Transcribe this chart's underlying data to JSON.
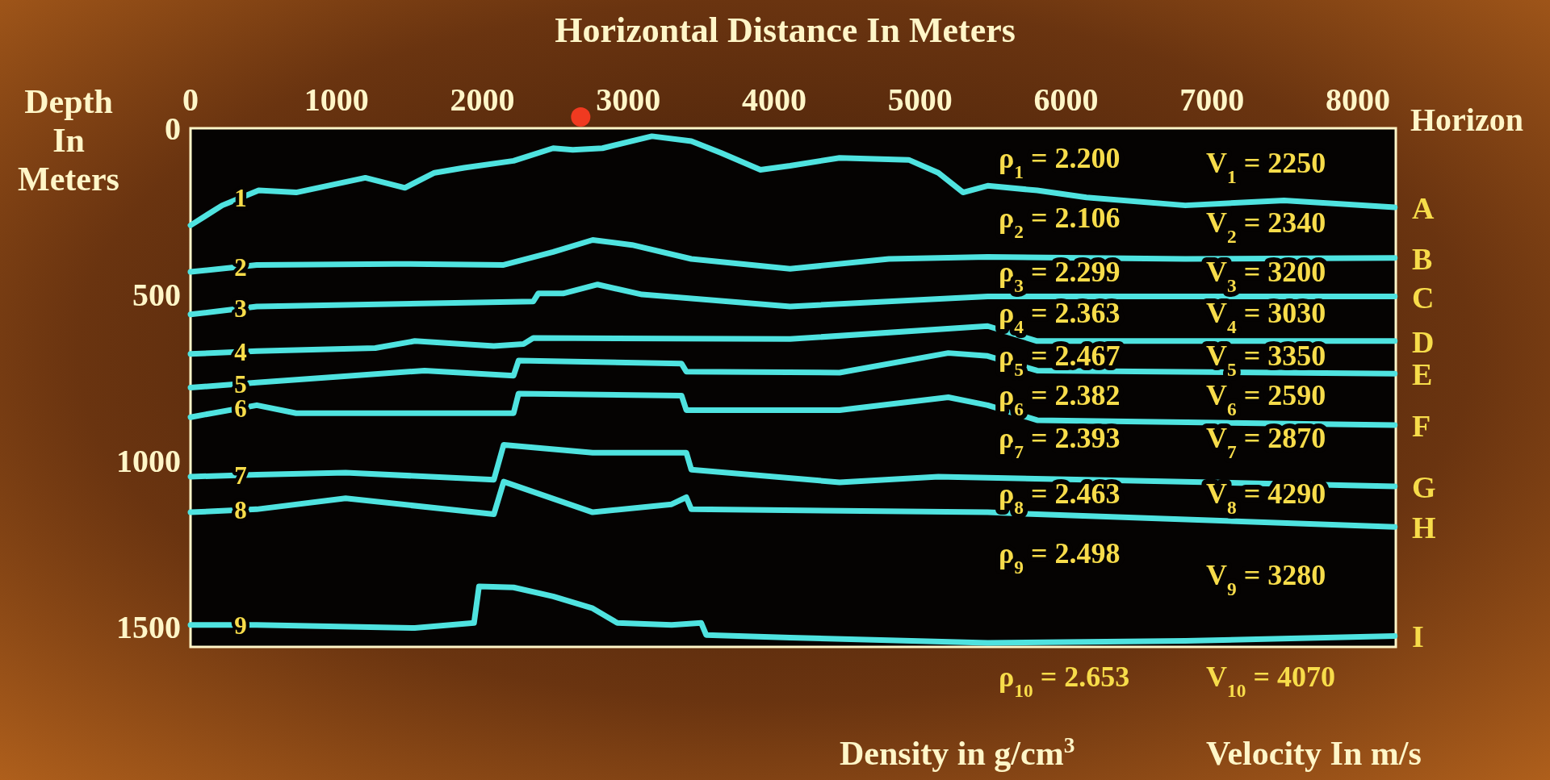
{
  "chart_data": {
    "type": "line",
    "xlabel": "Horizontal Distance In Meters",
    "ylabel": "Depth In Meters",
    "legend_title": "Horizon",
    "xlim": [
      0,
      8260
    ],
    "xticks": [
      0,
      1000,
      2000,
      3000,
      4000,
      5000,
      6000,
      7000,
      8000
    ],
    "ylim": [
      1560,
      0
    ],
    "yticks": [
      0,
      500,
      1000,
      1500
    ],
    "grid": false,
    "line_style": "solid",
    "series": [
      {
        "name": "A",
        "color": "#4fe3e0",
        "x": [
          0,
          217,
          467,
          724,
          1198,
          1469,
          1672,
          1875,
          2214,
          2485,
          2620,
          2823,
          3162,
          3432,
          3635,
          3906,
          4109,
          4448,
          4922,
          5125,
          5294,
          5463,
          5802,
          6140,
          6817,
          7494,
          8253
        ],
        "values": [
          292,
          232,
          187,
          193,
          149,
          179,
          134,
          119,
          98,
          60,
          65,
          60,
          24,
          39,
          74,
          125,
          113,
          89,
          95,
          134,
          193,
          173,
          187,
          208,
          232,
          217,
          238
        ]
      },
      {
        "name": "B",
        "color": "#4fe3e0",
        "x": [
          0,
          454,
          1401,
          2146,
          2485,
          2756,
          3026,
          3432,
          4109,
          4786,
          5463,
          6817,
          8253
        ],
        "values": [
          432,
          411,
          408,
          411,
          372,
          336,
          351,
          393,
          423,
          393,
          387,
          393,
          390
        ]
      },
      {
        "name": "C",
        "color": "#4fe3e0",
        "x": [
          0,
          454,
          2349,
          2383,
          2553,
          2790,
          3094,
          4109,
          5463,
          8253
        ],
        "values": [
          560,
          536,
          521,
          497,
          497,
          470,
          500,
          536,
          506,
          506
        ]
      },
      {
        "name": "D",
        "color": "#4fe3e0",
        "x": [
          0,
          454,
          1266,
          1537,
          2079,
          2282,
          2349,
          4109,
          5463,
          5802,
          8253
        ],
        "values": [
          679,
          670,
          661,
          640,
          655,
          649,
          631,
          634,
          595,
          640,
          640
        ]
      },
      {
        "name": "E",
        "color": "#4fe3e0",
        "x": [
          0,
          454,
          1604,
          2214,
          2248,
          3365,
          3398,
          4448,
          5193,
          5463,
          5802,
          8253
        ],
        "values": [
          780,
          765,
          729,
          744,
          699,
          708,
          732,
          735,
          676,
          685,
          729,
          738
        ]
      },
      {
        "name": "F",
        "color": "#4fe3e0",
        "x": [
          0,
          454,
          724,
          2214,
          2248,
          3365,
          3398,
          4448,
          5193,
          5463,
          5802,
          8253
        ],
        "values": [
          869,
          833,
          857,
          857,
          798,
          804,
          848,
          848,
          809,
          833,
          878,
          893
        ]
      },
      {
        "name": "G",
        "color": "#4fe3e0",
        "x": [
          0,
          454,
          1063,
          2079,
          2146,
          2756,
          3398,
          3432,
          4448,
          5125,
          6140,
          8253
        ],
        "values": [
          1048,
          1042,
          1036,
          1057,
          952,
          976,
          976,
          1027,
          1065,
          1048,
          1057,
          1077
        ]
      },
      {
        "name": "H",
        "color": "#4fe3e0",
        "x": [
          0,
          454,
          1063,
          2079,
          2146,
          2756,
          3297,
          3398,
          3432,
          5463,
          5802,
          8253
        ],
        "values": [
          1155,
          1146,
          1113,
          1161,
          1063,
          1155,
          1131,
          1110,
          1146,
          1155,
          1161,
          1199
        ]
      },
      {
        "name": "I",
        "color": "#4fe3e0",
        "x": [
          0,
          454,
          1537,
          1943,
          1977,
          2214,
          2485,
          2756,
          2925,
          3297,
          3500,
          3534,
          4109,
          5463,
          6817,
          8253
        ],
        "values": [
          1494,
          1494,
          1503,
          1488,
          1378,
          1381,
          1408,
          1444,
          1488,
          1494,
          1488,
          1524,
          1532,
          1548,
          1542,
          1527
        ]
      }
    ],
    "annotations": [
      "1",
      "2",
      "3",
      "4",
      "5",
      "6",
      "7",
      "8",
      "9",
      "ρ$_{1}$ = 2.200",
      "V$_{1}$ = 2250",
      "ρ$_{2}$ = 2.106",
      "V$_{2}$ = 2340",
      "ρ$_{3}$ = 2.299",
      "V$_{3}$ = 3200",
      "ρ$_{4}$ = 2.363",
      "V$_{4}$ = 3030",
      "ρ$_{5}$ = 2.467",
      "V$_{5}$ = 3350",
      "ρ$_{6}$ = 2.382",
      "V$_{6}$ = 2590",
      "ρ$_{7}$ = 2.393",
      "V$_{7}$ = 2870",
      "ρ$_{8}$ = 2.463",
      "V$_{8}$ = 4290",
      "ρ$_{9}$ = 2.498",
      "V$_{9}$ = 3280",
      "ρ$_{10}$ = 2.653",
      "V$_{10}$ = 4070",
      "Density in g/cm$^{3}$",
      "Velocity In m/s"
    ]
  }
}
